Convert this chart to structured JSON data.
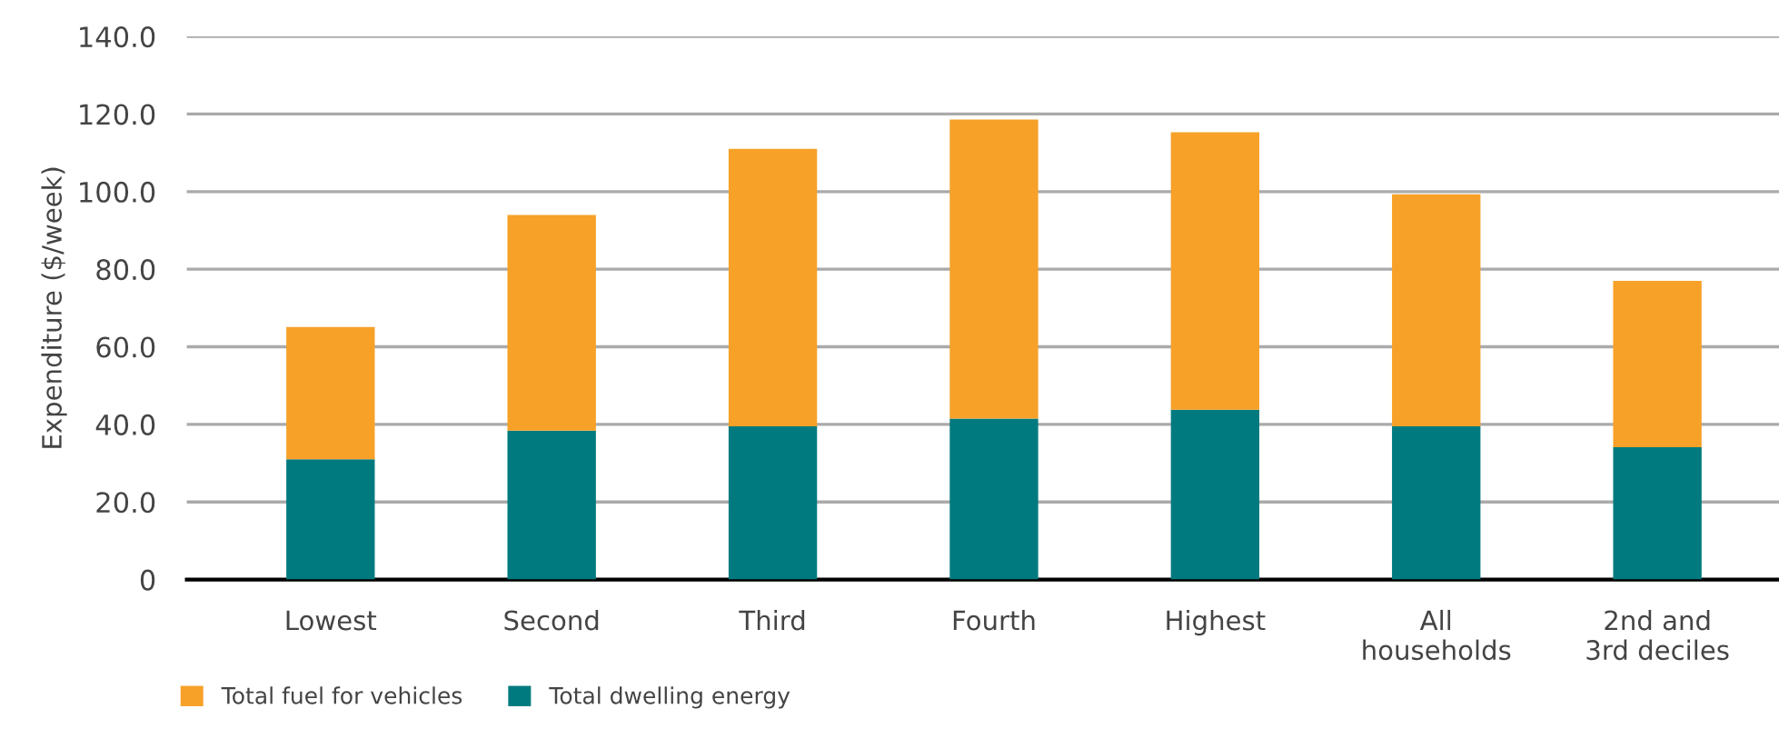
{
  "chart_data": {
    "type": "bar",
    "stacked": true,
    "ylabel": "Expenditure ($/week)",
    "categories": [
      "Lowest",
      "Second",
      "Third",
      "Fourth",
      "Highest",
      "All\nhouseholds",
      "2nd and\n3rd deciles"
    ],
    "series": [
      {
        "name": "Total dwelling energy",
        "color": "#007a7f",
        "values": [
          31.0,
          38.4,
          39.5,
          41.5,
          43.8,
          39.5,
          34.1
        ]
      },
      {
        "name": "Total fuel for vehicles",
        "color": "#f7a128",
        "values": [
          34.1,
          55.6,
          71.5,
          77.1,
          71.5,
          59.8,
          42.9
        ]
      }
    ],
    "ylim": [
      0,
      140
    ],
    "yticks": [
      {
        "value": 0,
        "label": "0"
      },
      {
        "value": 20,
        "label": "20.0"
      },
      {
        "value": 40,
        "label": "40.0"
      },
      {
        "value": 60,
        "label": "60.0"
      },
      {
        "value": 80,
        "label": "80.0"
      },
      {
        "value": 100,
        "label": "100.0"
      },
      {
        "value": 120,
        "label": "120.0"
      },
      {
        "value": 140,
        "label": "140.0"
      }
    ],
    "grid": "y",
    "legend": "bottom left"
  }
}
